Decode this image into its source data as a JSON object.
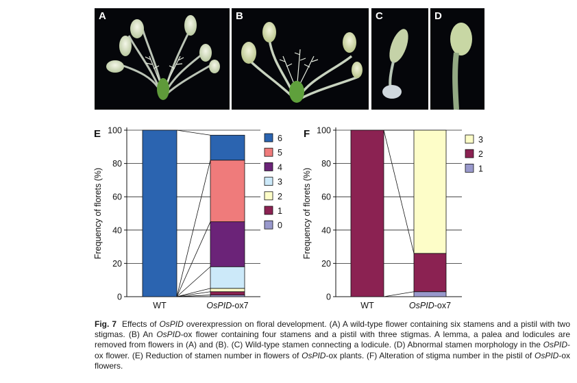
{
  "photos": [
    {
      "letter": "A",
      "description_icon": "flower-photo"
    },
    {
      "letter": "B",
      "description_icon": "flower-photo"
    },
    {
      "letter": "C",
      "description_icon": "stamen-photo"
    },
    {
      "letter": "D",
      "description_icon": "stamen-photo"
    }
  ],
  "chart_data": [
    {
      "panel": "E",
      "type": "bar",
      "stacked": true,
      "categories": [
        "WT",
        "OsPID-ox7"
      ],
      "ylabel": "Frequency of florets (%)",
      "ylim": [
        0,
        100
      ],
      "yticks": [
        0,
        20,
        40,
        60,
        80,
        100
      ],
      "grid": true,
      "legend_position": "right",
      "series": [
        {
          "name": "0",
          "color": "#9999cc",
          "values": [
            0,
            1
          ]
        },
        {
          "name": "1",
          "color": "#8b2252",
          "values": [
            0,
            2
          ]
        },
        {
          "name": "2",
          "color": "#fdfdc8",
          "values": [
            0,
            2
          ]
        },
        {
          "name": "3",
          "color": "#cce9f9",
          "values": [
            0,
            13
          ]
        },
        {
          "name": "4",
          "color": "#6b2378",
          "values": [
            0,
            27
          ]
        },
        {
          "name": "5",
          "color": "#ef7b7b",
          "values": [
            0,
            37
          ]
        },
        {
          "name": "6",
          "color": "#2b64b0",
          "values": [
            100,
            15
          ]
        }
      ]
    },
    {
      "panel": "F",
      "type": "bar",
      "stacked": true,
      "categories": [
        "WT",
        "OsPID-ox7"
      ],
      "ylabel": "Frequency of florets (%)",
      "ylim": [
        0,
        100
      ],
      "yticks": [
        0,
        20,
        40,
        60,
        80,
        100
      ],
      "grid": true,
      "legend_position": "right",
      "series": [
        {
          "name": "1",
          "color": "#9999cc",
          "values": [
            0,
            3
          ]
        },
        {
          "name": "2",
          "color": "#8b2252",
          "values": [
            100,
            23
          ]
        },
        {
          "name": "3",
          "color": "#fdfdc8",
          "values": [
            0,
            74
          ]
        }
      ]
    }
  ],
  "category_labels": [
    {
      "plain": "WT",
      "italic": ""
    },
    {
      "plain": "-ox7",
      "italic": "OsPID"
    }
  ],
  "caption": {
    "figno": "Fig. 7",
    "text": "Effects of OsPID overexpression on floral development. (A) A wild-type flower containing six stamens and a pistil with two stigmas. (B) An OsPID-ox flower containing four stamens and a pistil with three stigmas. A lemma, a palea and lodicules are removed from flowers in (A) and (B). (C) Wild-type stamen connecting a lodicule. (D) Abnormal stamen morphology in the OsPID-ox flower. (E) Reduction of stamen number in flowers of OsPID-ox plants. (F) Alteration of stigma number in the pistil of OsPID-ox flowers."
  }
}
